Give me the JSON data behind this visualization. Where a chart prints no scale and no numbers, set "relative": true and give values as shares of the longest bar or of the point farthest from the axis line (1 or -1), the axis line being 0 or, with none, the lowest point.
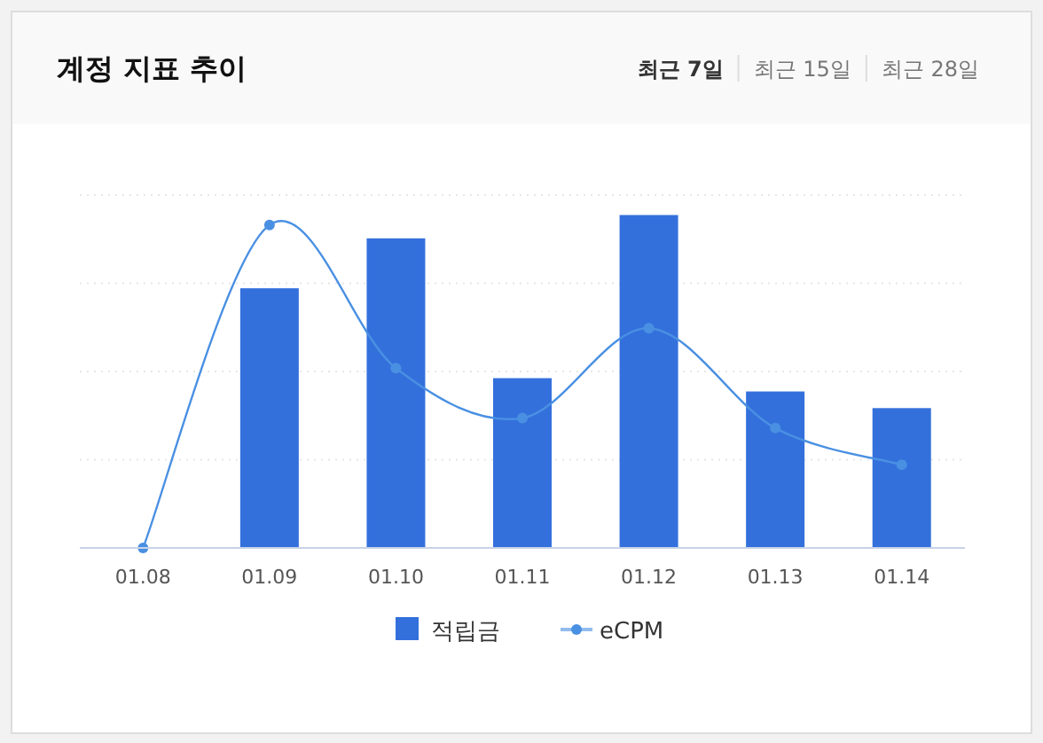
{
  "chart_data": {
    "type": "bar",
    "title": "계정 지표 추이",
    "annotations": [
      "최근 7일",
      "최근 15일",
      "최근 28일"
    ],
    "categories": [
      "01.08",
      "01.09",
      "01.10",
      "01.11",
      "01.12",
      "01.13",
      "01.14"
    ],
    "relative": true,
    "grid": "y",
    "legend": "bottom",
    "series": [
      {
        "name": "적립금",
        "color": "#3370dc",
        "values": [
          0,
          0.78,
          0.93,
          0.51,
          1,
          0.47,
          0.42
        ]
      },
      {
        "name": "eCPM",
        "type": "line",
        "color": "#4a90e2",
        "marker": "circle",
        "values": [
          0,
          0.97,
          0.54,
          0.39,
          0.66,
          0.36,
          0.25
        ]
      }
    ]
  }
}
